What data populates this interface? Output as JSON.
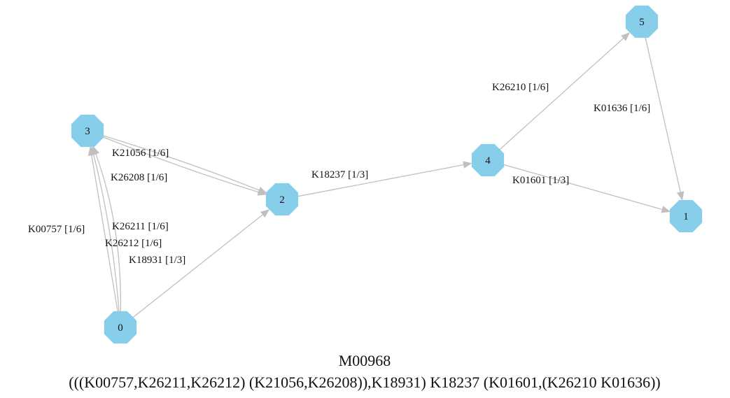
{
  "graph": {
    "title": "M00968",
    "subtitle": "(((K00757,K26211,K26212) (K21056,K26208)),K18931) K18237 (K01601,(K26210 K01636))",
    "node_color": "#87ceeb",
    "edge_color": "#c0c0c0",
    "nodes": [
      {
        "id": "0",
        "label": "0"
      },
      {
        "id": "1",
        "label": "1"
      },
      {
        "id": "2",
        "label": "2"
      },
      {
        "id": "3",
        "label": "3"
      },
      {
        "id": "4",
        "label": "4"
      },
      {
        "id": "5",
        "label": "5"
      }
    ],
    "edges": [
      {
        "source": "0",
        "target": "3",
        "label": "K00757 [1/6]"
      },
      {
        "source": "0",
        "target": "3",
        "label": "K26211 [1/6]"
      },
      {
        "source": "0",
        "target": "3",
        "label": "K26212 [1/6]"
      },
      {
        "source": "0",
        "target": "2",
        "label": "K18931 [1/3]"
      },
      {
        "source": "3",
        "target": "2",
        "label": "K21056 [1/6]"
      },
      {
        "source": "3",
        "target": "2",
        "label": "K26208 [1/6]"
      },
      {
        "source": "2",
        "target": "4",
        "label": "K18237 [1/3]"
      },
      {
        "source": "4",
        "target": "5",
        "label": "K26210 [1/6]"
      },
      {
        "source": "4",
        "target": "1",
        "label": "K01601 [1/3]"
      },
      {
        "source": "5",
        "target": "1",
        "label": "K01636 [1/6]"
      }
    ]
  }
}
